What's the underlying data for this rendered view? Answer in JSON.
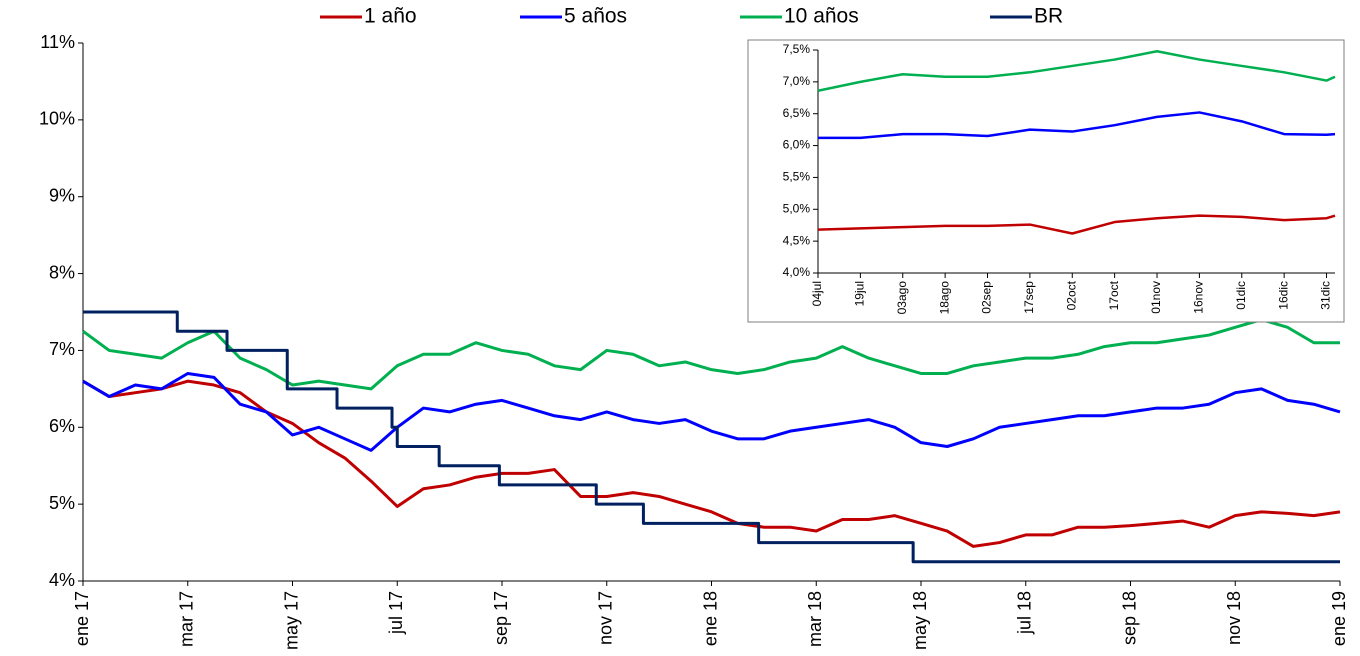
{
  "chart_data": [
    {
      "type": "line",
      "x": [
        0,
        0.5,
        1,
        1.5,
        2,
        2.5,
        3,
        3.5,
        4,
        4.5,
        5,
        5.5,
        6,
        6.5,
        7,
        7.5,
        8,
        8.5,
        9,
        9.5,
        10,
        10.5,
        11,
        11.5,
        12,
        12.5,
        13,
        13.5,
        14,
        14.5,
        15,
        15.5,
        16,
        16.5,
        17,
        17.5,
        18,
        18.5,
        19,
        19.5,
        20,
        20.5,
        21,
        21.5,
        22,
        22.5,
        23,
        23.5,
        24
      ],
      "xlim": [
        0,
        24
      ],
      "xticks": [
        {
          "value": 0,
          "label": "ene 17"
        },
        {
          "value": 2,
          "label": "mar 17"
        },
        {
          "value": 4,
          "label": "may 17"
        },
        {
          "value": 6,
          "label": "jul 17"
        },
        {
          "value": 8,
          "label": "sep 17"
        },
        {
          "value": 10,
          "label": "nov 17"
        },
        {
          "value": 12,
          "label": "ene 18"
        },
        {
          "value": 14,
          "label": "mar 18"
        },
        {
          "value": 16,
          "label": "may 18"
        },
        {
          "value": 18,
          "label": "jul 18"
        },
        {
          "value": 20,
          "label": "sep 18"
        },
        {
          "value": 22,
          "label": "nov 18"
        },
        {
          "value": 24,
          "label": "ene 19"
        }
      ],
      "ylim": [
        4,
        11
      ],
      "yticks": [
        {
          "value": 4,
          "label": "4%"
        },
        {
          "value": 5,
          "label": "5%"
        },
        {
          "value": 6,
          "label": "6%"
        },
        {
          "value": 7,
          "label": "7%"
        },
        {
          "value": 8,
          "label": "8%"
        },
        {
          "value": 9,
          "label": "9%"
        },
        {
          "value": 10,
          "label": "10%"
        },
        {
          "value": 11,
          "label": "11%"
        }
      ],
      "series": [
        {
          "name": "1 año",
          "color": "#c00000",
          "values": [
            6.6,
            6.4,
            6.45,
            6.5,
            6.6,
            6.55,
            6.45,
            6.2,
            6.05,
            5.8,
            5.6,
            5.3,
            4.97,
            5.2,
            5.25,
            5.35,
            5.4,
            5.4,
            5.45,
            5.1,
            5.1,
            5.15,
            5.1,
            5.0,
            4.9,
            4.75,
            4.7,
            4.7,
            4.65,
            4.8,
            4.8,
            4.85,
            4.75,
            4.65,
            4.45,
            4.5,
            4.6,
            4.6,
            4.7,
            4.7,
            4.72,
            4.75,
            4.78,
            4.7,
            4.85,
            4.9,
            4.88,
            4.85,
            4.9
          ]
        },
        {
          "name": "5 años",
          "color": "#0000ff",
          "values": [
            6.6,
            6.4,
            6.55,
            6.5,
            6.7,
            6.65,
            6.3,
            6.2,
            5.9,
            6.0,
            5.85,
            5.7,
            6.0,
            6.25,
            6.2,
            6.3,
            6.35,
            6.25,
            6.15,
            6.1,
            6.2,
            6.1,
            6.05,
            6.1,
            5.95,
            5.85,
            5.85,
            5.95,
            6.0,
            6.05,
            6.1,
            6.0,
            5.8,
            5.75,
            5.85,
            6.0,
            6.05,
            6.1,
            6.15,
            6.15,
            6.2,
            6.25,
            6.25,
            6.3,
            6.45,
            6.5,
            6.35,
            6.3,
            6.2
          ]
        },
        {
          "name": "10 años",
          "color": "#00b050",
          "values": [
            7.25,
            7.0,
            6.95,
            6.9,
            7.1,
            7.25,
            6.9,
            6.75,
            6.55,
            6.6,
            6.55,
            6.5,
            6.8,
            6.95,
            6.95,
            7.1,
            7.0,
            6.95,
            6.8,
            6.75,
            7.0,
            6.95,
            6.8,
            6.85,
            6.75,
            6.7,
            6.75,
            6.85,
            6.9,
            7.05,
            6.9,
            6.8,
            6.7,
            6.7,
            6.8,
            6.85,
            6.9,
            6.9,
            6.95,
            7.05,
            7.1,
            7.1,
            7.15,
            7.2,
            7.3,
            7.4,
            7.3,
            7.1,
            7.1
          ]
        },
        {
          "name": "BR",
          "color": "#002060",
          "step": true,
          "x": [
            0,
            1.8,
            2.75,
            3.9,
            4.85,
            5.9,
            6.0,
            6.8,
            7.95,
            9.8,
            10.7,
            12.9,
            15.85,
            24
          ],
          "values": [
            7.5,
            7.25,
            7,
            6.5,
            6.25,
            6,
            5.75,
            5.5,
            5.25,
            5,
            4.75,
            4.5,
            4.25,
            4.25
          ]
        }
      ]
    },
    {
      "type": "line",
      "x": [
        0,
        15,
        30,
        45,
        60,
        75,
        90,
        105,
        120,
        135,
        150,
        165,
        180,
        183
      ],
      "xlim": [
        0,
        183
      ],
      "xticks": [
        {
          "value": 0,
          "label": "04jul"
        },
        {
          "value": 15,
          "label": "19jul"
        },
        {
          "value": 30,
          "label": "03ago"
        },
        {
          "value": 45,
          "label": "18ago"
        },
        {
          "value": 60,
          "label": "02sep"
        },
        {
          "value": 75,
          "label": "17sep"
        },
        {
          "value": 90,
          "label": "02oct"
        },
        {
          "value": 105,
          "label": "17oct"
        },
        {
          "value": 120,
          "label": "01nov"
        },
        {
          "value": 135,
          "label": "16nov"
        },
        {
          "value": 150,
          "label": "01dic"
        },
        {
          "value": 165,
          "label": "16dic"
        },
        {
          "value": 180,
          "label": "31dic"
        }
      ],
      "ylim": [
        4,
        7.5
      ],
      "yticks": [
        {
          "value": 4,
          "label": "4,0%"
        },
        {
          "value": 4.5,
          "label": "4,5%"
        },
        {
          "value": 5,
          "label": "5,0%"
        },
        {
          "value": 5.5,
          "label": "5,5%"
        },
        {
          "value": 6,
          "label": "6,0%"
        },
        {
          "value": 6.5,
          "label": "6,5%"
        },
        {
          "value": 7,
          "label": "7,0%"
        },
        {
          "value": 7.5,
          "label": "7,5%"
        }
      ],
      "series": [
        {
          "color": "#c00000",
          "values": [
            4.68,
            4.7,
            4.72,
            4.74,
            4.74,
            4.76,
            4.62,
            4.8,
            4.86,
            4.9,
            4.88,
            4.83,
            4.86,
            4.9
          ]
        },
        {
          "color": "#0000ff",
          "values": [
            6.12,
            6.12,
            6.18,
            6.18,
            6.15,
            6.25,
            6.22,
            6.32,
            6.45,
            6.52,
            6.38,
            6.18,
            6.17,
            6.18
          ]
        },
        {
          "color": "#00b050",
          "values": [
            6.86,
            7.0,
            7.12,
            7.08,
            7.08,
            7.15,
            7.25,
            7.35,
            7.48,
            7.35,
            7.25,
            7.15,
            7.02,
            7.08
          ]
        }
      ]
    }
  ]
}
